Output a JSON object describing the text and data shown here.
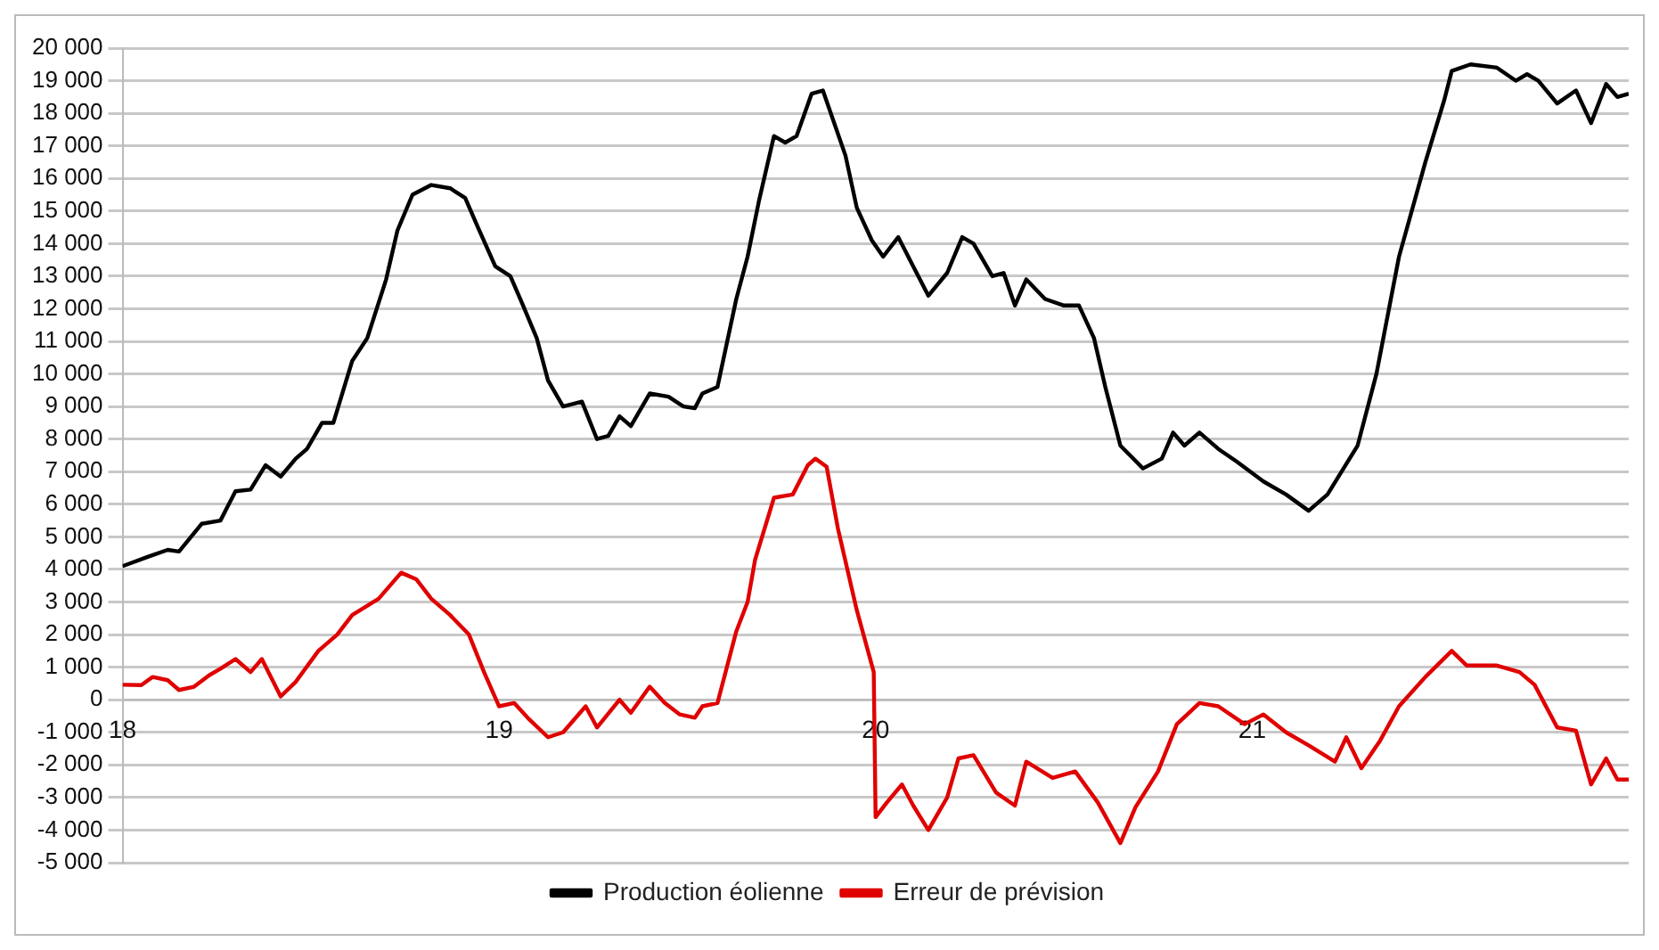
{
  "chart_data": {
    "type": "line",
    "xlim": [
      18,
      22
    ],
    "xticks": [
      18,
      19,
      20,
      21
    ],
    "ylim": [
      -5000,
      20000
    ],
    "yticks": [
      {
        "value": -5000,
        "label": "-5 000"
      },
      {
        "value": -4000,
        "label": "-4 000"
      },
      {
        "value": -3000,
        "label": "-3 000"
      },
      {
        "value": -2000,
        "label": "-2 000"
      },
      {
        "value": -1000,
        "label": "-1 000"
      },
      0,
      {
        "value": 1000,
        "label": "1 000"
      },
      {
        "value": 2000,
        "label": "2 000"
      },
      {
        "value": 3000,
        "label": "3 000"
      },
      {
        "value": 4000,
        "label": "4 000"
      },
      {
        "value": 5000,
        "label": "5 000"
      },
      {
        "value": 6000,
        "label": "6 000"
      },
      {
        "value": 7000,
        "label": "7 000"
      },
      {
        "value": 8000,
        "label": "8 000"
      },
      {
        "value": 9000,
        "label": "9 000"
      },
      {
        "value": 10000,
        "label": "10 000"
      },
      {
        "value": 11000,
        "label": "11 000"
      },
      {
        "value": 12000,
        "label": "12 000"
      },
      {
        "value": 13000,
        "label": "13 000"
      },
      {
        "value": 14000,
        "label": "14 000"
      },
      {
        "value": 15000,
        "label": "15 000"
      },
      {
        "value": 16000,
        "label": "16 000"
      },
      {
        "value": 17000,
        "label": "17 000"
      },
      {
        "value": 18000,
        "label": "18 000"
      },
      {
        "value": 19000,
        "label": "19 000"
      },
      {
        "value": 20000,
        "label": "20 000"
      }
    ],
    "grid": "y",
    "legend": "bottom",
    "marker": "none",
    "line_style": "solid",
    "series": [
      {
        "name": "Production éolienne",
        "color": "#000000",
        "x": [
          18.0,
          18.07,
          18.12,
          18.15,
          18.21,
          18.26,
          18.3,
          18.34,
          18.38,
          18.42,
          18.46,
          18.49,
          18.53,
          18.56,
          18.61,
          18.65,
          18.7,
          18.73,
          18.77,
          18.82,
          18.87,
          18.91,
          18.94,
          18.99,
          19.03,
          19.06,
          19.1,
          19.13,
          19.17,
          19.22,
          19.26,
          19.29,
          19.32,
          19.35,
          19.4,
          19.45,
          19.49,
          19.52,
          19.54,
          19.58,
          19.63,
          19.66,
          19.69,
          19.73,
          19.76,
          19.79,
          19.83,
          19.86,
          19.92,
          19.95,
          19.99,
          20.02,
          20.06,
          20.1,
          20.14,
          20.19,
          20.23,
          20.26,
          20.31,
          20.34,
          20.37,
          20.4,
          20.45,
          20.5,
          20.54,
          20.58,
          20.61,
          20.65,
          20.71,
          20.76,
          20.79,
          20.82,
          20.86,
          20.91,
          20.96,
          21.03,
          21.09,
          21.15,
          21.2,
          21.28,
          21.33,
          21.39,
          21.46,
          21.51,
          21.53,
          21.58,
          21.65,
          21.7,
          21.73,
          21.76,
          21.81,
          21.86,
          21.9,
          21.94,
          21.97,
          22.0
        ],
        "values": [
          4100,
          4400,
          4600,
          4550,
          5400,
          5500,
          6400,
          6450,
          7200,
          6850,
          7400,
          7700,
          8500,
          8500,
          10400,
          11100,
          12900,
          14400,
          15500,
          15800,
          15700,
          15400,
          14600,
          13300,
          13000,
          12200,
          11100,
          9800,
          9000,
          9150,
          8000,
          8100,
          8700,
          8400,
          9400,
          9300,
          9000,
          8950,
          9400,
          9600,
          12300,
          13600,
          15300,
          17300,
          17100,
          17300,
          18600,
          18700,
          16700,
          15100,
          14100,
          13600,
          14200,
          13300,
          12400,
          13100,
          14200,
          14000,
          13000,
          13100,
          12100,
          12900,
          12300,
          12100,
          12100,
          11100,
          9600,
          7800,
          7100,
          7400,
          8200,
          7800,
          8200,
          7700,
          7300,
          6700,
          6300,
          5800,
          6300,
          7800,
          10000,
          13600,
          16500,
          18400,
          19300,
          19500,
          19400,
          19000,
          19200,
          19000,
          18300,
          18700,
          17700,
          18900,
          18500,
          18600
        ]
      },
      {
        "name": "Erreur de prévision",
        "color": "#e00000",
        "x": [
          18.0,
          18.05,
          18.08,
          18.12,
          18.15,
          18.19,
          18.23,
          18.26,
          18.3,
          18.34,
          18.37,
          18.42,
          18.46,
          18.52,
          18.57,
          18.61,
          18.68,
          18.74,
          18.78,
          18.82,
          18.87,
          18.92,
          18.96,
          19.0,
          19.04,
          19.08,
          19.13,
          19.17,
          19.23,
          19.26,
          19.32,
          19.35,
          19.4,
          19.44,
          19.48,
          19.52,
          19.54,
          19.58,
          19.63,
          19.66,
          19.68,
          19.73,
          19.78,
          19.82,
          19.84,
          19.87,
          19.9,
          19.95,
          19.995,
          20.0,
          20.03,
          20.07,
          20.1,
          20.14,
          20.19,
          20.22,
          20.26,
          20.32,
          20.37,
          20.4,
          20.47,
          20.53,
          20.59,
          20.65,
          20.69,
          20.75,
          20.8,
          20.86,
          20.91,
          20.98,
          21.03,
          21.09,
          21.15,
          21.22,
          21.25,
          21.29,
          21.34,
          21.39,
          21.46,
          21.53,
          21.57,
          21.65,
          21.71,
          21.75,
          21.81,
          21.86,
          21.9,
          21.94,
          21.97,
          22.0
        ],
        "values": [
          460,
          450,
          700,
          600,
          300,
          400,
          750,
          950,
          1250,
          850,
          1250,
          100,
          550,
          1500,
          2000,
          2600,
          3100,
          3900,
          3700,
          3100,
          2600,
          2000,
          850,
          -200,
          -100,
          -600,
          -1150,
          -1000,
          -200,
          -850,
          0,
          -400,
          400,
          -100,
          -450,
          -550,
          -200,
          -100,
          2100,
          3000,
          4300,
          6200,
          6300,
          7200,
          7400,
          7150,
          5250,
          2750,
          850,
          -3600,
          -3150,
          -2600,
          -3250,
          -4000,
          -3000,
          -1800,
          -1700,
          -2850,
          -3250,
          -1900,
          -2400,
          -2200,
          -3150,
          -4400,
          -3300,
          -2200,
          -750,
          -100,
          -200,
          -750,
          -450,
          -1000,
          -1400,
          -1900,
          -1150,
          -2100,
          -1250,
          -200,
          700,
          1500,
          1050,
          1050,
          850,
          460,
          -850,
          -950,
          -2600,
          -1800,
          -2450,
          -2450
        ]
      }
    ]
  }
}
